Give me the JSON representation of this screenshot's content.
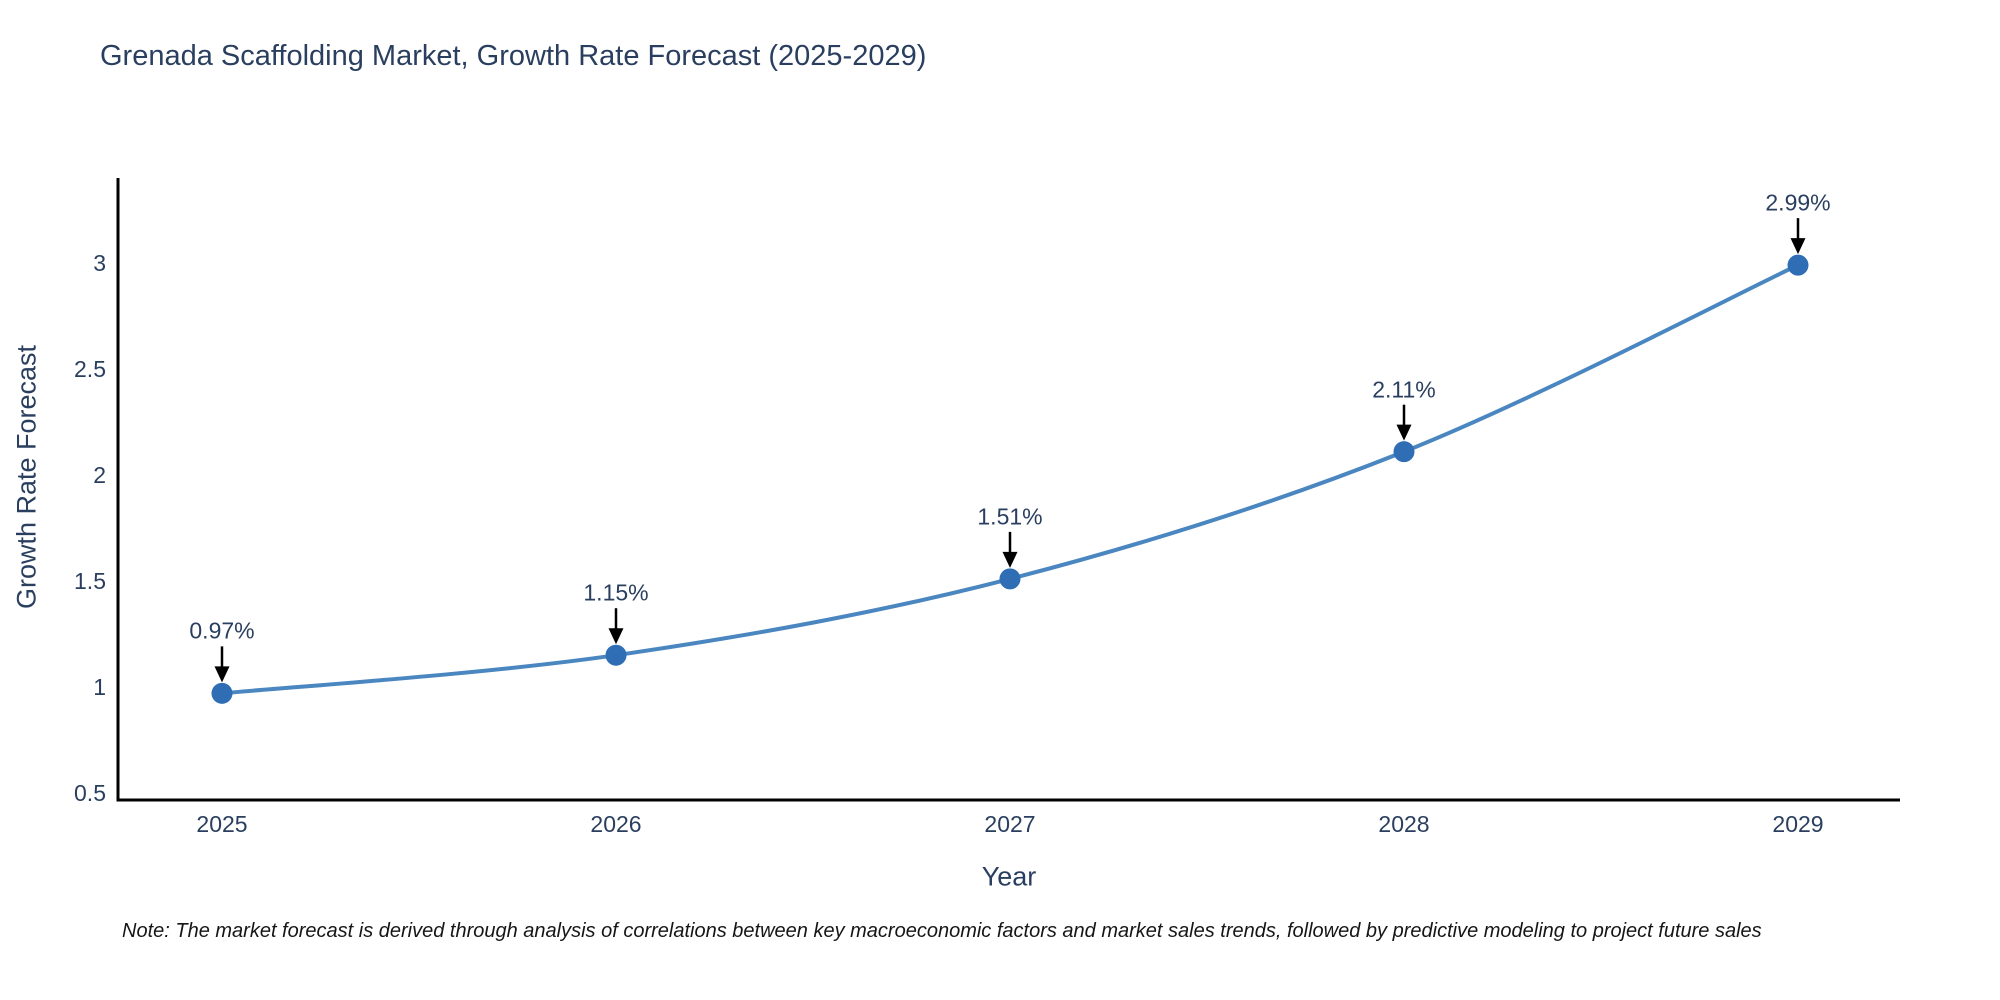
{
  "title": "Grenada Scaffolding Market, Growth Rate Forecast (2025-2029)",
  "note": "Note: The market forecast is derived through analysis of correlations between key macroeconomic factors and market sales trends, followed by predictive modeling to project future sales",
  "chart_data": {
    "type": "line",
    "title": "Grenada Scaffolding Market, Growth Rate Forecast (2025-2029)",
    "xlabel": "Year",
    "ylabel": "Growth Rate Forecast",
    "x": [
      2025,
      2026,
      2027,
      2028,
      2029
    ],
    "series": [
      {
        "name": "Growth Rate Forecast",
        "values": [
          0.97,
          1.15,
          1.51,
          2.11,
          2.99
        ]
      }
    ],
    "point_labels": [
      "0.97%",
      "1.15%",
      "1.51%",
      "2.11%",
      "2.99%"
    ],
    "x_tick_labels": [
      "2025",
      "2026",
      "2027",
      "2028",
      "2029"
    ],
    "y_tick_labels": [
      "0.5",
      "1",
      "1.5",
      "2",
      "2.5",
      "3"
    ],
    "y_tick_values": [
      0.5,
      1,
      1.5,
      2,
      2.5,
      3
    ],
    "ylim": [
      0.47,
      3.43
    ],
    "grid": false,
    "legend_position": "none",
    "line_shape": "spline",
    "colors": {
      "line": "#4a86c0",
      "marker": "#2f6eb4",
      "axis": "#000000",
      "text": "#2a3f5f",
      "annotation_arrow": "#000000",
      "note_text": "#161616",
      "background": "#ffffff"
    }
  }
}
